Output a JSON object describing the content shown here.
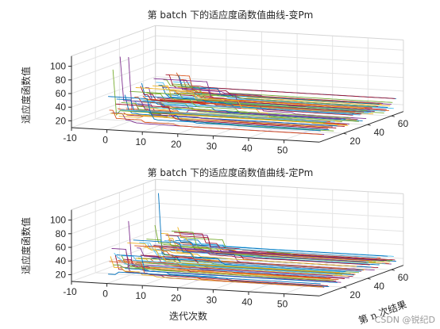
{
  "chart_data": [
    {
      "type": "line",
      "title": "第 batch 下的适应度函数值曲线-变Pm",
      "xlabel": "",
      "ylabel": "",
      "zlabel": "适应度函数值",
      "view": "3d",
      "grid": true,
      "x_ticks": [
        "-10",
        "0",
        "10",
        "20",
        "30",
        "40",
        "50"
      ],
      "y_ticks": [
        "20",
        "40",
        "60"
      ],
      "z_ticks": [
        "20",
        "40",
        "60",
        "80",
        "100"
      ],
      "xlim": [
        -10,
        60
      ],
      "ylim": [
        0,
        70
      ],
      "zlim": [
        10,
        115
      ],
      "series_count": 64,
      "iterations": 60,
      "start_range": [
        22,
        60
      ],
      "final_range": [
        18,
        36
      ],
      "spikes": [
        {
          "run": 11,
          "value": 110
        },
        {
          "run": 18,
          "value": 105
        },
        {
          "run": 5,
          "value": 95
        }
      ]
    },
    {
      "type": "line",
      "title": "第 batch 下的适应度函数值曲线-定Pm",
      "xlabel": "迭代次数",
      "ylabel": "第 n 次结果",
      "zlabel": "适应度函数值",
      "view": "3d",
      "grid": true,
      "x_ticks": [
        "-10",
        "0",
        "10",
        "20",
        "30",
        "40",
        "50"
      ],
      "y_ticks": [
        "20",
        "40",
        "60"
      ],
      "z_ticks": [
        "20",
        "40",
        "60",
        "80",
        "100"
      ],
      "xlim": [
        -10,
        60
      ],
      "ylim": [
        0,
        70
      ],
      "zlim": [
        10,
        115
      ],
      "series_count": 64,
      "iterations": 60,
      "start_range": [
        22,
        60
      ],
      "final_range": [
        18,
        36
      ],
      "spikes": [
        {
          "run": 43,
          "value": 118
        },
        {
          "run": 18,
          "value": 90
        },
        {
          "run": 40,
          "value": 70
        }
      ]
    }
  ],
  "watermark": "CSDN @锐纪D",
  "colors": [
    "#0072bd",
    "#d95319",
    "#edb120",
    "#7e2f8e",
    "#77ac30",
    "#4dbeee",
    "#a2142f"
  ]
}
